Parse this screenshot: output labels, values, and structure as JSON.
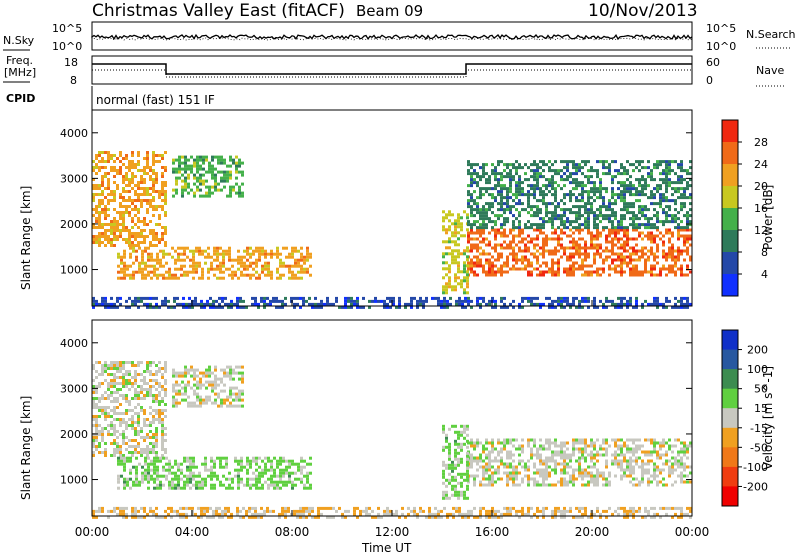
{
  "header": {
    "title": "Christmas Valley East (fitACF)",
    "beam": "Beam 09",
    "date": "10/Nov/2013"
  },
  "status_panels": {
    "nsky_label": "N.Sky",
    "nsearch_label": "N.Search",
    "freq_label_line1": "Freq.",
    "freq_label_line2": "[MHz]",
    "nave_label": "Nave",
    "cpid_label": "CPID",
    "cpid_value": "normal (fast) 151 IF",
    "left_ticks_top": [
      "10^5",
      "10^0"
    ],
    "right_ticks_top": [
      "10^5",
      "10^0"
    ],
    "left_ticks_freq": [
      "18",
      "8"
    ],
    "right_ticks_nave": [
      "60",
      "0"
    ]
  },
  "chart_data": [
    {
      "type": "heatmap",
      "title": "",
      "xlabel": "",
      "ylabel": "Slant Range [km]",
      "xlim": [
        "00:00",
        "24:00"
      ],
      "ylim": [
        200,
        4500
      ],
      "yticks": [
        1000,
        2000,
        3000,
        4000
      ],
      "colorbar": {
        "label": "Power [dB]",
        "range": [
          0,
          32
        ],
        "ticks": [
          "4",
          "8",
          "12",
          "16",
          "20",
          "24",
          "28"
        ],
        "colors": [
          "#1030ff",
          "#2448a8",
          "#2e7a5a",
          "#44b04a",
          "#c8c820",
          "#f0a020",
          "#f06a18",
          "#f02810"
        ]
      },
      "regions": [
        {
          "t0": 0.0,
          "t1": 3.0,
          "r0": 1500,
          "r1": 3600,
          "value": 22,
          "desc": "early slant band"
        },
        {
          "t0": 1.0,
          "t1": 8.8,
          "r0": 800,
          "r1": 1500,
          "value": 22,
          "desc": "main morning echoes"
        },
        {
          "t0": 3.2,
          "t1": 6.0,
          "r0": 2600,
          "r1": 3500,
          "value": 14
        },
        {
          "t0": 15.0,
          "t1": 24.0,
          "r0": 900,
          "r1": 1900,
          "value": 26,
          "desc": "evening strong echoes"
        },
        {
          "t0": 14.0,
          "t1": 15.0,
          "r0": 500,
          "r1": 2300,
          "value": 18
        },
        {
          "t0": 15.0,
          "t1": 24.0,
          "r0": 1900,
          "r1": 3400,
          "value": 10
        },
        {
          "t0": 0.0,
          "t1": 24.0,
          "r0": 200,
          "r1": 400,
          "value": 6,
          "desc": "near-range ground scatter"
        }
      ]
    },
    {
      "type": "heatmap",
      "title": "",
      "xlabel": "Time UT",
      "ylabel": "Slant Range [km]",
      "xlim": [
        "00:00",
        "24:00"
      ],
      "ylim": [
        200,
        4500
      ],
      "yticks": [
        1000,
        2000,
        3000,
        4000
      ],
      "xticks": [
        "00:00",
        "04:00",
        "08:00",
        "12:00",
        "16:00",
        "20:00",
        "00:00"
      ],
      "colorbar": {
        "label": "Velocity [m s^-1]",
        "range": [
          -250,
          250
        ],
        "ticks": [
          "200",
          "100",
          "50",
          "15",
          "-15",
          "-50",
          "-100",
          "-200"
        ],
        "colors": [
          "#1030c8",
          "#2858a0",
          "#3c8c50",
          "#60d040",
          "#c8c8c0",
          "#f0a020",
          "#f07818",
          "#f03c10",
          "#f00000"
        ]
      },
      "regions": [
        {
          "t0": 0.0,
          "t1": 3.0,
          "r0": 1500,
          "r1": 3600,
          "value": 0,
          "desc": "ground scatter grey"
        },
        {
          "t0": 1.0,
          "t1": 8.8,
          "r0": 800,
          "r1": 1500,
          "value": 45,
          "desc": "green positive velocity"
        },
        {
          "t0": 3.2,
          "t1": 6.0,
          "r0": 2600,
          "r1": 3500,
          "value": 0
        },
        {
          "t0": 15.0,
          "t1": 24.0,
          "r0": 900,
          "r1": 1900,
          "value": 0,
          "desc": "grey evening band"
        },
        {
          "t0": 14.0,
          "t1": 15.0,
          "r0": 600,
          "r1": 2200,
          "value": 40
        },
        {
          "t0": 0.0,
          "t1": 24.0,
          "r0": 200,
          "r1": 400,
          "value": -30,
          "desc": "near-range orange"
        }
      ]
    }
  ]
}
